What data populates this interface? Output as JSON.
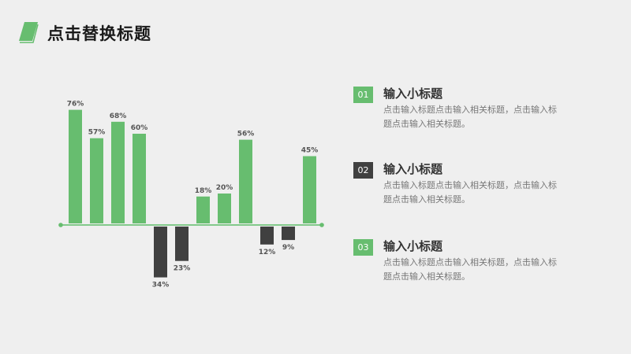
{
  "header": {
    "title": "点击替换标题"
  },
  "colors": {
    "accent": "#67bd6f",
    "dark": "#4a4a4a",
    "axis": "#82c98a"
  },
  "items": [
    {
      "num": "01",
      "title": "输入小标题",
      "desc": "点击输入标题点击输入相关标题，点击输入标题点击输入相关标题。",
      "color": "#67bd6f"
    },
    {
      "num": "02",
      "title": "输入小标题",
      "desc": "点击输入标题点击输入相关标题，点击输入标题点击输入相关标题。",
      "color": "#404040"
    },
    {
      "num": "03",
      "title": "输入小标题",
      "desc": "点击输入标题点击输入相关标题，点击输入标题点击输入相关标题。",
      "color": "#67bd6f"
    }
  ],
  "chart_data": {
    "type": "bar",
    "values": [
      76,
      57,
      68,
      60,
      -34,
      -23,
      18,
      20,
      56,
      -12,
      -9,
      45
    ],
    "labels": [
      "76%",
      "57%",
      "68%",
      "60%",
      "34%",
      "23%",
      "18%",
      "20%",
      "56%",
      "12%",
      "9%",
      "45%"
    ],
    "positive_color": "#67bd6f",
    "negative_color": "#404040"
  }
}
